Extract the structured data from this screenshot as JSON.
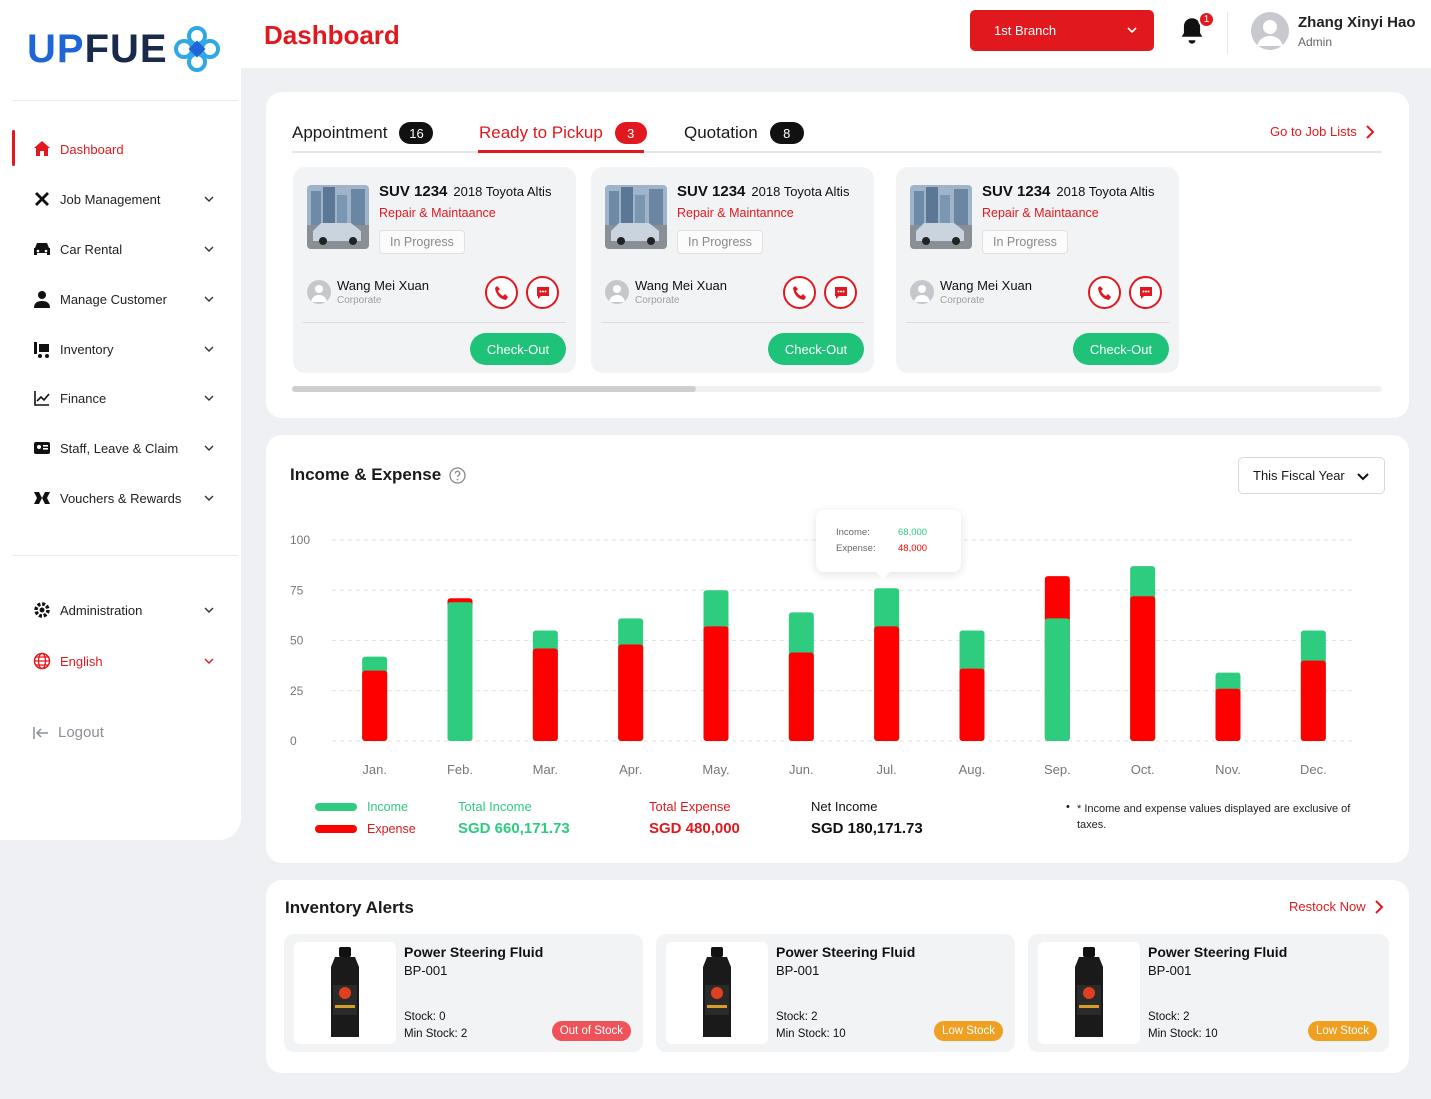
{
  "app": {
    "logo_text_blue": "UP",
    "logo_text_dark": "FUE"
  },
  "header": {
    "title": "Dashboard",
    "branch": "1st Branch",
    "notif_count": "1",
    "user_name": "Zhang Xinyi Hao",
    "user_role": "Admin"
  },
  "sidebar": {
    "items": [
      {
        "label": "Dashboard",
        "icon": "home-icon"
      },
      {
        "label": "Job Management",
        "icon": "tools-icon"
      },
      {
        "label": "Car Rental",
        "icon": "car-icon"
      },
      {
        "label": "Manage Customer",
        "icon": "user-icon"
      },
      {
        "label": "Inventory",
        "icon": "inventory-icon"
      },
      {
        "label": "Finance",
        "icon": "chart-line-icon"
      },
      {
        "label": "Staff, Leave & Claim",
        "icon": "id-card-icon"
      },
      {
        "label": "Vouchers & Rewards",
        "icon": "voucher-icon"
      },
      {
        "label": "Administration",
        "icon": "gear-icon"
      },
      {
        "label": "English",
        "icon": "globe-icon"
      }
    ],
    "logout": "Logout"
  },
  "jobs": {
    "tabs": [
      {
        "label": "Appointment",
        "count": "16"
      },
      {
        "label": "Ready to Pickup",
        "count": "3"
      },
      {
        "label": "Quotation",
        "count": "8"
      }
    ],
    "go_link": "Go to Job Lists",
    "cards": [
      {
        "plate": "SUV 1234",
        "car": "2018 Toyota Altis",
        "service": "Repair & Maintaance",
        "status": "In Progress",
        "customer": "Wang Mei Xuan",
        "type": "Corporate",
        "action": "Check-Out"
      },
      {
        "plate": "SUV 1234",
        "car": "2018 Toyota Altis",
        "service": "Repair & Maintannce",
        "status": "In Progress",
        "customer": "Wang Mei Xuan",
        "type": "Corporate",
        "action": "Check-Out"
      },
      {
        "plate": "SUV 1234",
        "car": "2018 Toyota Altis",
        "service": "Repair & Maintaance",
        "status": "In Progress",
        "customer": "Wang Mei Xuan",
        "type": "Corporate",
        "action": "Check-Out"
      }
    ]
  },
  "income": {
    "title": "Income & Expense",
    "period": "This Fiscal Year",
    "tooltip": {
      "income_label": "Income:",
      "income_value": "68,000",
      "expense_label": "Expense:",
      "expense_value": "48,000"
    },
    "legend": {
      "income": "Income",
      "expense": "Expense"
    },
    "totals": {
      "income_label": "Total Income",
      "income_value": "SGD 660,171.73",
      "expense_label": "Total Expense",
      "expense_value": "SGD 480,000",
      "net_label": "Net Income",
      "net_value": "SGD 180,171.73"
    },
    "note": "* Income and expense values displayed are exclusive of taxes."
  },
  "chart_data": {
    "type": "bar",
    "categories": [
      "Jan.",
      "Feb.",
      "Mar.",
      "Apr.",
      "May.",
      "Jun.",
      "Jul.",
      "Aug.",
      "Sep.",
      "Oct.",
      "Nov.",
      "Dec."
    ],
    "series": [
      {
        "name": "Income",
        "color": "#2ecc7f",
        "values": [
          42,
          69,
          55,
          61,
          75,
          64,
          76,
          55,
          61,
          87,
          34,
          55
        ]
      },
      {
        "name": "Expense",
        "color": "#ff0000",
        "values": [
          35,
          71,
          46,
          48,
          57,
          44,
          57,
          36,
          82,
          72,
          26,
          40
        ]
      }
    ],
    "yticks": [
      0,
      25,
      50,
      75,
      100
    ],
    "ylim": [
      0,
      100
    ]
  },
  "inventory": {
    "title": "Inventory Alerts",
    "link": "Restock Now",
    "items": [
      {
        "name": "Power Steering Fluid",
        "code": "BP-001",
        "stock": "Stock: 0",
        "min": "Min Stock: 2",
        "status": "Out of Stock",
        "color": "#f0525a"
      },
      {
        "name": "Power Steering Fluid",
        "code": "BP-001",
        "stock": "Stock: 2",
        "min": "Min Stock: 10",
        "status": "Low Stock",
        "color": "#f0a020"
      },
      {
        "name": "Power Steering Fluid",
        "code": "BP-001",
        "stock": "Stock: 2",
        "min": "Min Stock: 10",
        "status": "Low Stock",
        "color": "#f0a020"
      }
    ]
  }
}
